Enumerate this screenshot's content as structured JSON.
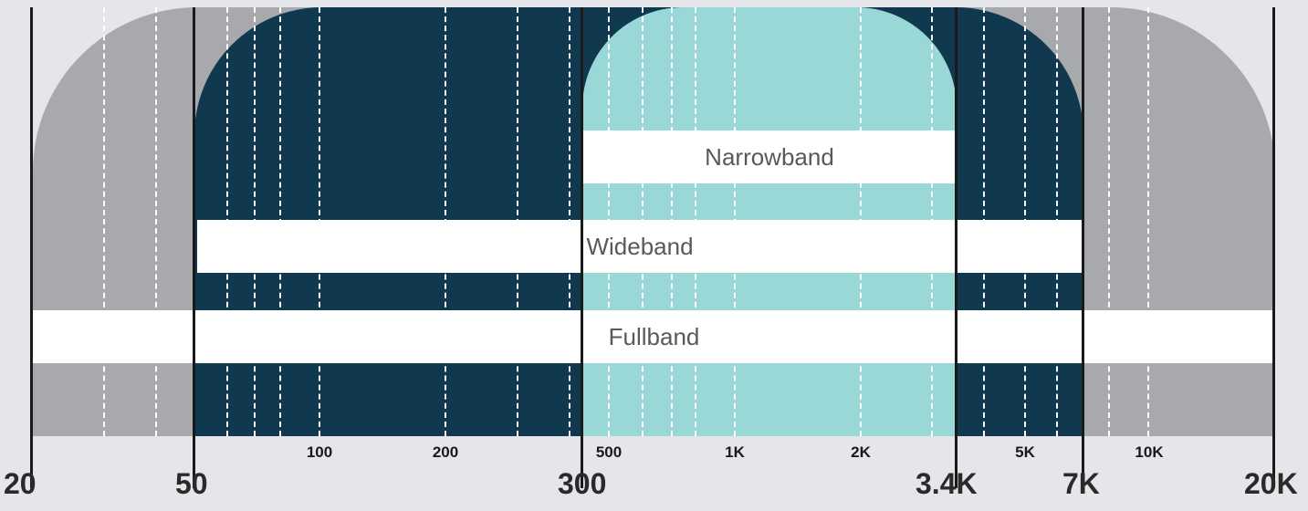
{
  "bands": {
    "fullband": {
      "label": "Fullband",
      "color": "#a8a9ac",
      "range": [
        "20",
        "20K"
      ]
    },
    "wideband": {
      "label": "Wideband",
      "color": "#10384e",
      "range": [
        "50",
        "7K"
      ]
    },
    "narrowband": {
      "label": "Narrowband",
      "color": "#9ad8d8",
      "range": [
        "300",
        "3.4K"
      ]
    }
  },
  "major_ticks": [
    "20",
    "50",
    "300",
    "3.4K",
    "7K",
    "20K"
  ],
  "minor_ticks": [
    "100",
    "200",
    "500",
    "1K",
    "2K",
    "5K",
    "10K"
  ]
}
